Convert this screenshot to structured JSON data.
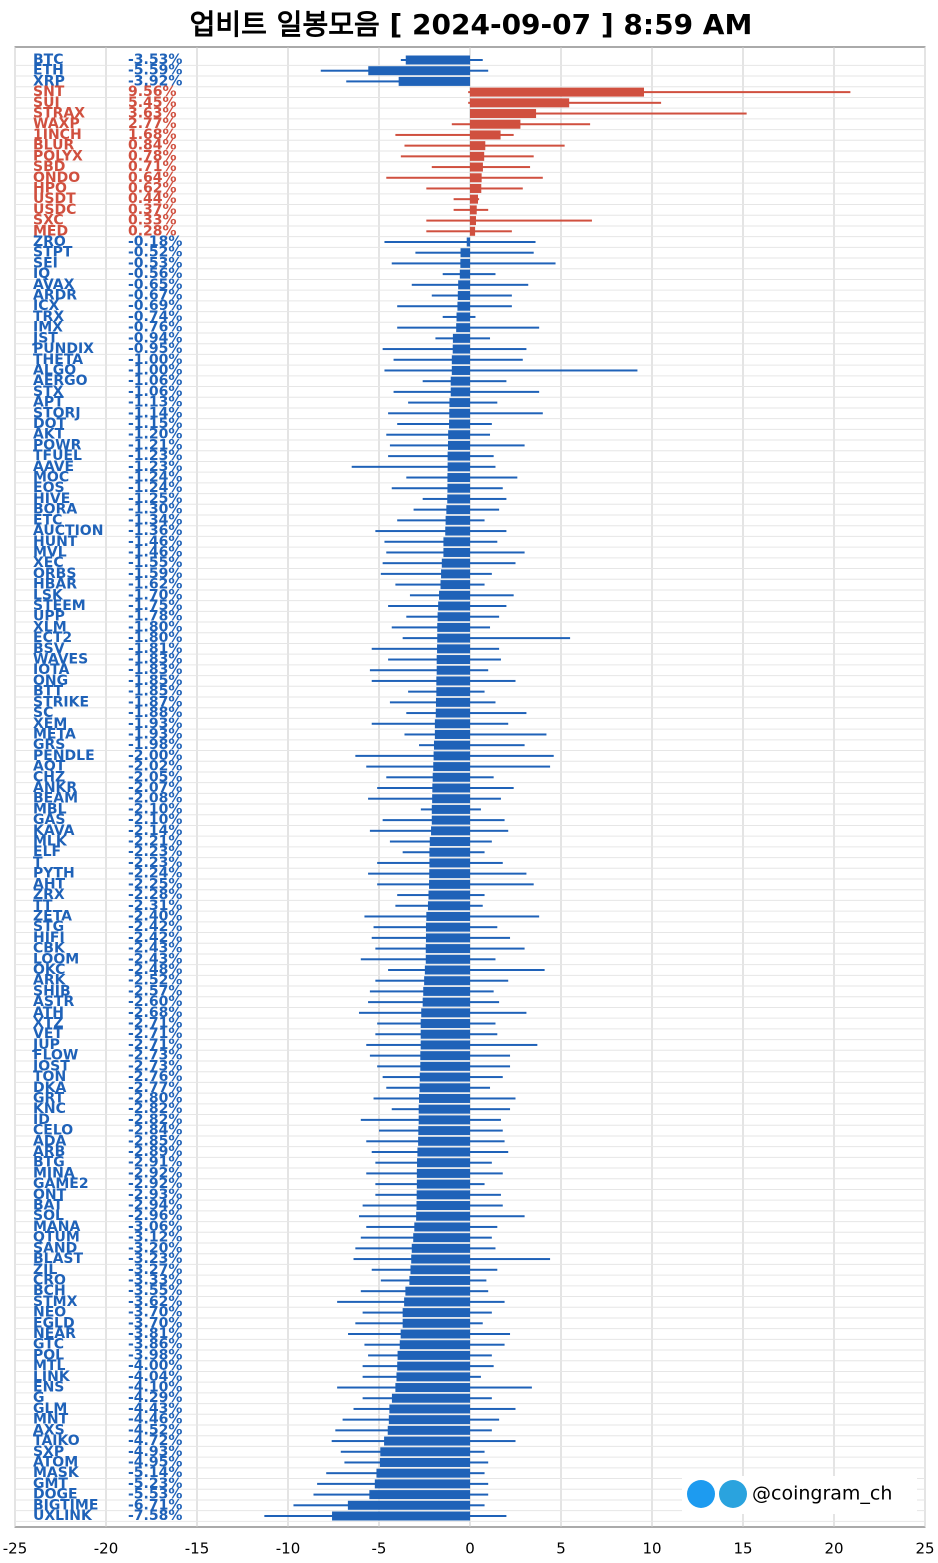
{
  "chart_data": {
    "type": "bar",
    "orientation": "horizontal",
    "title": "업비트 일봉모음 [ 2024-09-07 ]  8:59 AM",
    "annotation": "@coingram_ch",
    "positive_color": "#d0503f",
    "negative_color": "#1f62b8",
    "xlim": [
      -25,
      25
    ],
    "xticks": [
      -25,
      -20,
      -15,
      -10,
      -5,
      0,
      5,
      10,
      15,
      20,
      25
    ],
    "grid": true,
    "categories": [
      "BTC",
      "ETH",
      "XRP",
      "SNT",
      "SUI",
      "STRAX",
      "WAXP",
      "1INCH",
      "BLUR",
      "POLYX",
      "SBD",
      "ONDO",
      "HPO",
      "USDT",
      "USDC",
      "SXC",
      "MED",
      "ZRO",
      "STPT",
      "SEI",
      "IQ",
      "AVAX",
      "ARDR",
      "ICX",
      "TRX",
      "IMX",
      "JST",
      "PUNDIX",
      "THETA",
      "ALGO",
      "AERGO",
      "STX",
      "APT",
      "STORJ",
      "DOT",
      "AKT",
      "POWR",
      "TFUEL",
      "AAVE",
      "MOC",
      "EOS",
      "HIVE",
      "BORA",
      "ETC",
      "AUCTION",
      "HUNT",
      "MVL",
      "XEC",
      "ORBS",
      "HBAR",
      "LSK",
      "STEEM",
      "UPP",
      "XLM",
      "ECT2",
      "BSV",
      "WAVES",
      "IOTA",
      "ONG",
      "BTT",
      "STRIKE",
      "SC",
      "XEM",
      "META",
      "GRS",
      "PENDLE",
      "AQT",
      "CHZ",
      "ANKR",
      "BEAM",
      "MBL",
      "GAS",
      "KAVA",
      "MLK",
      "ELF",
      "T",
      "PYTH",
      "AHT",
      "ZRX",
      "TT",
      "ZETA",
      "STG",
      "HIFI",
      "CBK",
      "LOOM",
      "OKC",
      "ARK",
      "SHIB",
      "ASTR",
      "ATH",
      "XTZ",
      "VET",
      "JUP",
      "FLOW",
      "IOST",
      "TON",
      "DKA",
      "GRT",
      "KNC",
      "ID",
      "CELO",
      "ADA",
      "ARB",
      "BTG",
      "MINA",
      "GAME2",
      "ONT",
      "BAT",
      "SOL",
      "MANA",
      "QTUM",
      "SAND",
      "BLAST",
      "ZIL",
      "CRO",
      "BCH",
      "STMX",
      "NEO",
      "EGLD",
      "NEAR",
      "GTC",
      "POL",
      "MTL",
      "LINK",
      "ENS",
      "G",
      "GLM",
      "MNT",
      "AXS",
      "TAIKO",
      "SXP",
      "ATOM",
      "MASK",
      "GMT",
      "DOGE",
      "BIGTIME",
      "UXLINK"
    ],
    "values": [
      -3.53,
      -5.59,
      -3.92,
      9.56,
      5.45,
      3.63,
      2.77,
      1.68,
      0.84,
      0.78,
      0.71,
      0.64,
      0.62,
      0.44,
      0.37,
      0.33,
      0.28,
      -0.18,
      -0.52,
      -0.53,
      -0.56,
      -0.65,
      -0.67,
      -0.69,
      -0.74,
      -0.76,
      -0.94,
      -0.95,
      -1.0,
      -1.0,
      -1.06,
      -1.06,
      -1.13,
      -1.14,
      -1.15,
      -1.2,
      -1.21,
      -1.23,
      -1.23,
      -1.24,
      -1.24,
      -1.25,
      -1.3,
      -1.34,
      -1.36,
      -1.46,
      -1.46,
      -1.55,
      -1.59,
      -1.62,
      -1.7,
      -1.75,
      -1.78,
      -1.8,
      -1.8,
      -1.81,
      -1.83,
      -1.83,
      -1.85,
      -1.85,
      -1.87,
      -1.88,
      -1.93,
      -1.93,
      -1.98,
      -2.0,
      -2.02,
      -2.05,
      -2.07,
      -2.08,
      -2.1,
      -2.1,
      -2.14,
      -2.21,
      -2.23,
      -2.23,
      -2.24,
      -2.25,
      -2.28,
      -2.31,
      -2.4,
      -2.42,
      -2.42,
      -2.43,
      -2.43,
      -2.48,
      -2.52,
      -2.57,
      -2.6,
      -2.68,
      -2.71,
      -2.71,
      -2.71,
      -2.73,
      -2.73,
      -2.76,
      -2.77,
      -2.8,
      -2.82,
      -2.82,
      -2.84,
      -2.85,
      -2.89,
      -2.91,
      -2.92,
      -2.92,
      -2.93,
      -2.94,
      -2.96,
      -3.06,
      -3.12,
      -3.2,
      -3.23,
      -3.27,
      -3.33,
      -3.55,
      -3.62,
      -3.7,
      -3.7,
      -3.81,
      -3.86,
      -3.98,
      -4.0,
      -4.04,
      -4.1,
      -4.29,
      -4.43,
      -4.46,
      -4.52,
      -4.72,
      -4.93,
      -4.95,
      -5.14,
      -5.23,
      -5.53,
      -6.71,
      -7.58
    ],
    "value_labels": [
      "-3.53%",
      "-5.59%",
      "-3.92%",
      "9.56%",
      "5.45%",
      "3.63%",
      "2.77%",
      "1.68%",
      "0.84%",
      "0.78%",
      "0.71%",
      "0.64%",
      "0.62%",
      "0.44%",
      "0.37%",
      "0.33%",
      "0.28%",
      "-0.18%",
      "-0.52%",
      "-0.53%",
      "-0.56%",
      "-0.65%",
      "-0.67%",
      "-0.69%",
      "-0.74%",
      "-0.76%",
      "-0.94%",
      "-0.95%",
      "-1.00%",
      "-1.00%",
      "-1.06%",
      "-1.06%",
      "-1.13%",
      "-1.14%",
      "-1.15%",
      "-1.20%",
      "-1.21%",
      "-1.23%",
      "-1.23%",
      "-1.24%",
      "-1.24%",
      "-1.25%",
      "-1.30%",
      "-1.34%",
      "-1.36%",
      "-1.46%",
      "-1.46%",
      "-1.55%",
      "-1.59%",
      "-1.62%",
      "-1.70%",
      "-1.75%",
      "-1.78%",
      "-1.80%",
      "-1.80%",
      "-1.81%",
      "-1.83%",
      "-1.83%",
      "-1.85%",
      "-1.85%",
      "-1.87%",
      "-1.88%",
      "-1.93%",
      "-1.93%",
      "-1.98%",
      "-2.00%",
      "-2.02%",
      "-2.05%",
      "-2.07%",
      "-2.08%",
      "-2.10%",
      "-2.10%",
      "-2.14%",
      "-2.21%",
      "-2.23%",
      "-2.23%",
      "-2.24%",
      "-2.25%",
      "-2.28%",
      "-2.31%",
      "-2.40%",
      "-2.42%",
      "-2.42%",
      "-2.43%",
      "-2.43%",
      "-2.48%",
      "-2.52%",
      "-2.57%",
      "-2.60%",
      "-2.68%",
      "-2.71%",
      "-2.71%",
      "-2.71%",
      "-2.73%",
      "-2.73%",
      "-2.76%",
      "-2.77%",
      "-2.80%",
      "-2.82%",
      "-2.82%",
      "-2.84%",
      "-2.85%",
      "-2.89%",
      "-2.91%",
      "-2.92%",
      "-2.92%",
      "-2.93%",
      "-2.94%",
      "-2.96%",
      "-3.06%",
      "-3.12%",
      "-3.20%",
      "-3.23%",
      "-3.27%",
      "-3.33%",
      "-3.55%",
      "-3.62%",
      "-3.70%",
      "-3.70%",
      "-3.81%",
      "-3.86%",
      "-3.98%",
      "-4.00%",
      "-4.04%",
      "-4.10%",
      "-4.29%",
      "-4.43%",
      "-4.46%",
      "-4.52%",
      "-4.72%",
      "-4.93%",
      "-4.95%",
      "-5.14%",
      "-5.23%",
      "-5.53%",
      "-6.71%",
      "-7.58%"
    ],
    "low": [
      -3.8,
      -8.2,
      -6.8,
      -0.1,
      -0.1,
      0,
      -1,
      -4.1,
      -3.6,
      -3.8,
      -2.1,
      -4.6,
      -2.4,
      -0.9,
      -0.9,
      -2.4,
      -2.4,
      -4.7,
      -3,
      -4.3,
      -1.5,
      -3.2,
      -2.1,
      -4,
      -1.5,
      -4,
      -1.9,
      -4.8,
      -4.2,
      -4.7,
      -2.6,
      -4.2,
      -3.4,
      -4.5,
      -4,
      -4.6,
      -4.4,
      -4.5,
      -6.5,
      -3.5,
      -4.3,
      -2.6,
      -3.1,
      -4,
      -5.2,
      -4.7,
      -4.6,
      -4.8,
      -4.9,
      -4.1,
      -3.3,
      -4.5,
      -3.5,
      -4.3,
      -3.7,
      -5.4,
      -4.5,
      -5.5,
      -5.4,
      -3.4,
      -4.4,
      -3.5,
      -5.4,
      -3.6,
      -2.8,
      -6.3,
      -5.7,
      -4.6,
      -5.1,
      -5.6,
      -2.7,
      -4.8,
      -5.5,
      -4.4,
      -3.7,
      -5.1,
      -5.6,
      -5.1,
      -4,
      -4.1,
      -5.8,
      -5.3,
      -5.4,
      -5.2,
      -6,
      -4.5,
      -5.2,
      -5.5,
      -5.6,
      -6.1,
      -5.1,
      -5.2,
      -5.7,
      -5.5,
      -5.1,
      -4.8,
      -4.6,
      -5.3,
      -4.3,
      -6,
      -5,
      -5.7,
      -5.4,
      -5.2,
      -5.7,
      -5.2,
      -5.2,
      -5.9,
      -6.1,
      -5.7,
      -6,
      -6.3,
      -6.4,
      -5.4,
      -4.9,
      -6,
      -7.3,
      -5.9,
      -6.3,
      -6.7,
      -5.8,
      -5.6,
      -5.9,
      -5.9,
      -7.3,
      -5.9,
      -6.4,
      -7,
      -7.4,
      -7.6,
      -7.1,
      -6.9,
      -7.9,
      -8.4,
      -8.6,
      -9.7,
      -11.3
    ],
    "high": [
      0.7,
      1,
      0,
      20.9,
      10.5,
      15.2,
      6.6,
      2.4,
      5.2,
      3.5,
      3.3,
      4,
      2.9,
      0.5,
      1,
      6.7,
      2.3,
      3.6,
      3.5,
      4.7,
      1.4,
      3.2,
      2.3,
      2.3,
      0.3,
      3.8,
      1.1,
      3.1,
      2.9,
      9.2,
      2,
      3.8,
      1.5,
      4,
      1.2,
      1.1,
      3,
      1.3,
      1.4,
      2.6,
      1.8,
      2,
      1.6,
      0.8,
      2,
      1.5,
      3,
      2.5,
      1.2,
      0.8,
      2.4,
      2,
      1.6,
      1.1,
      5.5,
      1.6,
      1.7,
      1,
      2.5,
      0.8,
      1.4,
      3.1,
      2.1,
      4.2,
      3,
      4.6,
      4.4,
      1.3,
      2.4,
      1.7,
      0.6,
      1.9,
      2.1,
      1.2,
      0.8,
      1.8,
      3.1,
      3.5,
      0.8,
      0.7,
      3.8,
      1.5,
      2.2,
      3,
      1.4,
      4.1,
      2.1,
      1.3,
      1.6,
      3.1,
      1.4,
      1.5,
      3.7,
      2.2,
      2.2,
      1.8,
      1.1,
      2.5,
      2.2,
      1.7,
      1.8,
      1.9,
      2.1,
      1.2,
      1.8,
      0.8,
      1.7,
      1.8,
      3,
      1.5,
      1.2,
      1.4,
      4.4,
      1.5,
      0.9,
      1,
      1.9,
      1.2,
      0.7,
      2.2,
      1.9,
      1.2,
      1.3,
      0.6,
      3.4,
      1.2,
      2.5,
      1.6,
      1.2,
      2.5,
      0.8,
      1,
      0.8,
      1,
      1,
      0.8,
      2
    ]
  }
}
